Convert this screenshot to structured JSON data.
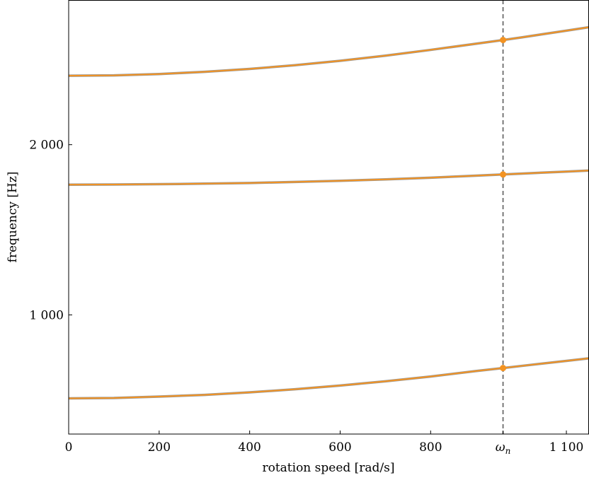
{
  "chart_data": {
    "type": "line",
    "xlabel": "rotation speed [rad/s]",
    "ylabel": "frequency [Hz]",
    "xlim": [
      0,
      1150
    ],
    "ylim": [
      300,
      2850
    ],
    "x_ticks": [
      {
        "value": 0,
        "label": "0"
      },
      {
        "value": 200,
        "label": "200"
      },
      {
        "value": 400,
        "label": "400"
      },
      {
        "value": 600,
        "label": "600"
      },
      {
        "value": 800,
        "label": "800"
      },
      {
        "value": 960,
        "label": "ωn"
      },
      {
        "value": 1100,
        "label": "1 100"
      }
    ],
    "y_ticks": [
      {
        "value": 1000,
        "label": "1 000"
      },
      {
        "value": 2000,
        "label": "2 000"
      }
    ],
    "marker_line": {
      "x": 960,
      "label": "ωn",
      "style": "dashed",
      "color": "#6b6b6b"
    },
    "series": [
      {
        "color": "#f39322",
        "x": [
          0,
          100,
          200,
          300,
          400,
          500,
          600,
          700,
          800,
          900,
          960,
          1000,
          1100,
          1150
        ],
        "values": [
          510,
          512,
          520,
          530,
          545,
          563,
          585,
          610,
          638,
          670,
          688,
          700,
          730,
          745
        ]
      },
      {
        "color": "#f39322",
        "x": [
          0,
          100,
          200,
          300,
          400,
          500,
          600,
          700,
          800,
          900,
          960,
          1000,
          1100,
          1150
        ],
        "values": [
          1765,
          1766,
          1768,
          1771,
          1775,
          1781,
          1788,
          1796,
          1806,
          1818,
          1825,
          1830,
          1842,
          1848
        ]
      },
      {
        "color": "#f39322",
        "x": [
          0,
          100,
          200,
          300,
          400,
          500,
          600,
          700,
          800,
          900,
          960,
          1000,
          1100,
          1150
        ],
        "values": [
          2405,
          2407,
          2415,
          2428,
          2445,
          2467,
          2493,
          2523,
          2557,
          2593,
          2615,
          2630,
          2670,
          2690
        ]
      }
    ],
    "shadow_color": "#9a9a9a",
    "points": [
      {
        "x": 960,
        "y": 688
      },
      {
        "x": 960,
        "y": 1825
      },
      {
        "x": 960,
        "y": 2615
      }
    ],
    "grid": false,
    "legend": "none"
  }
}
